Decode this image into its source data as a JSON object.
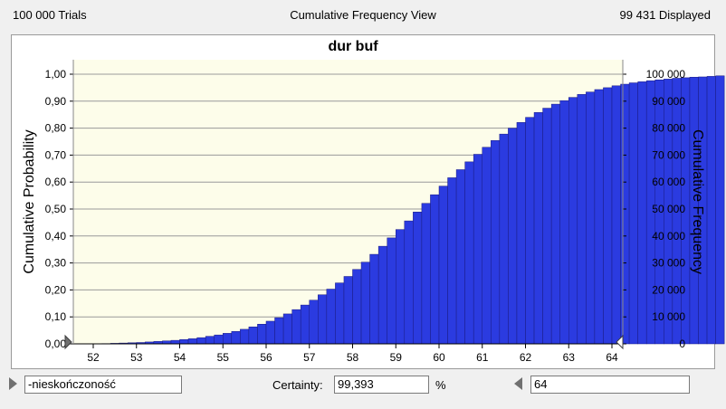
{
  "header": {
    "trials": "100 000 Trials",
    "view": "Cumulative Frequency View",
    "displayed": "99 431 Displayed"
  },
  "footer": {
    "lower_value": "-nieskończoność",
    "certainty_label": "Certainty:",
    "certainty_value": "99,393",
    "percent_sign": "%",
    "upper_value": "64"
  },
  "colors": {
    "plot_background": "#fdfdea",
    "bar_fill": "#2b3be0",
    "bar_edge": "#1a1a80",
    "selected_bar": "#f08078"
  },
  "chart_data": {
    "type": "bar",
    "title": "dur buf",
    "ylabel": "Cumulative Probability",
    "y2label": "Cumulative Frequency",
    "xlim": [
      51.6,
      64.5
    ],
    "ylim": [
      0,
      1
    ],
    "y2lim": [
      0,
      100000
    ],
    "grid": true,
    "xticks": [
      "52",
      "53",
      "54",
      "55",
      "56",
      "57",
      "58",
      "59",
      "60",
      "61",
      "62",
      "63",
      "64"
    ],
    "yticks": [
      "0,00",
      "0,10",
      "0,20",
      "0,30",
      "0,40",
      "0,50",
      "0,60",
      "0,70",
      "0,80",
      "0,90",
      "1,00"
    ],
    "y2ticks": [
      "0",
      "10 000",
      "20 000",
      "30 000",
      "40 000",
      "50 000",
      "60 000",
      "70 000",
      "80 000",
      "90 000",
      "100 000"
    ],
    "bin_start": 52.0,
    "bin_width": 0.2,
    "values": [
      0.0,
      0.001,
      0.002,
      0.003,
      0.004,
      0.005,
      0.007,
      0.009,
      0.011,
      0.013,
      0.016,
      0.019,
      0.023,
      0.028,
      0.033,
      0.039,
      0.046,
      0.054,
      0.063,
      0.073,
      0.084,
      0.097,
      0.111,
      0.127,
      0.144,
      0.162,
      0.182,
      0.203,
      0.226,
      0.25,
      0.276,
      0.303,
      0.332,
      0.362,
      0.393,
      0.424,
      0.456,
      0.489,
      0.521,
      0.553,
      0.585,
      0.616,
      0.646,
      0.675,
      0.703,
      0.729,
      0.754,
      0.778,
      0.8,
      0.821,
      0.84,
      0.858,
      0.874,
      0.889,
      0.902,
      0.914,
      0.925,
      0.934,
      0.943,
      0.95,
      0.957,
      0.963,
      0.968,
      0.972,
      0.976,
      0.979,
      0.982,
      0.985,
      0.987,
      0.989,
      0.99,
      0.992,
      0.994
    ],
    "selected_value": 0.994
  }
}
